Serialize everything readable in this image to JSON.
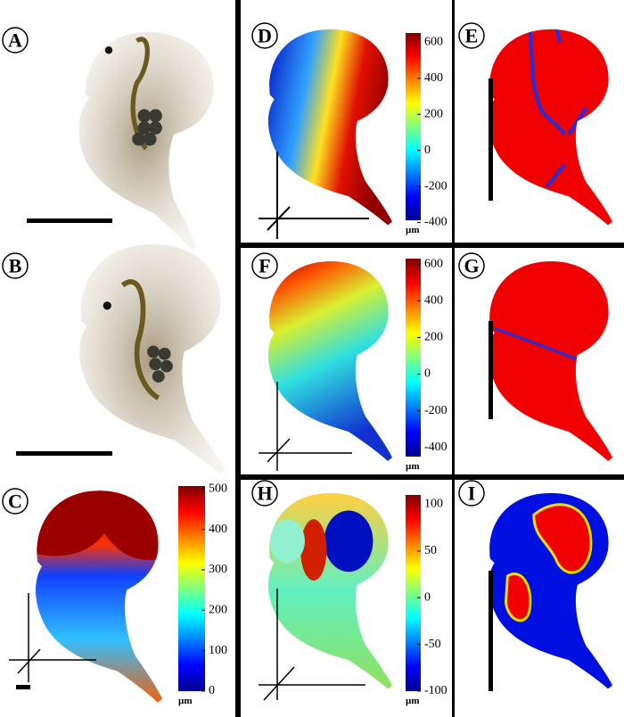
{
  "panels": [
    {
      "label": "A"
    },
    {
      "label": "B"
    },
    {
      "label": "C"
    },
    {
      "label": "D"
    },
    {
      "label": "E"
    },
    {
      "label": "F"
    },
    {
      "label": "G"
    },
    {
      "label": "H"
    },
    {
      "label": "I"
    }
  ],
  "colorbars": [
    {
      "panel": "C",
      "lim": [
        0,
        507
      ],
      "ticks": [
        500,
        400,
        300,
        200,
        100,
        0
      ],
      "unit": "µm"
    },
    {
      "panel": "D",
      "lim": [
        -388,
        652
      ],
      "ticks": [
        600,
        400,
        200,
        0,
        -200,
        -400
      ],
      "unit": "µm"
    },
    {
      "panel": "F",
      "lim": [
        -450,
        630
      ],
      "ticks": [
        600,
        400,
        200,
        0,
        -200,
        -400
      ],
      "unit": "µm"
    },
    {
      "panel": "H",
      "lim": [
        -100,
        110
      ],
      "ticks": [
        100,
        50,
        0,
        -50,
        -100
      ],
      "unit": "µm"
    }
  ]
}
